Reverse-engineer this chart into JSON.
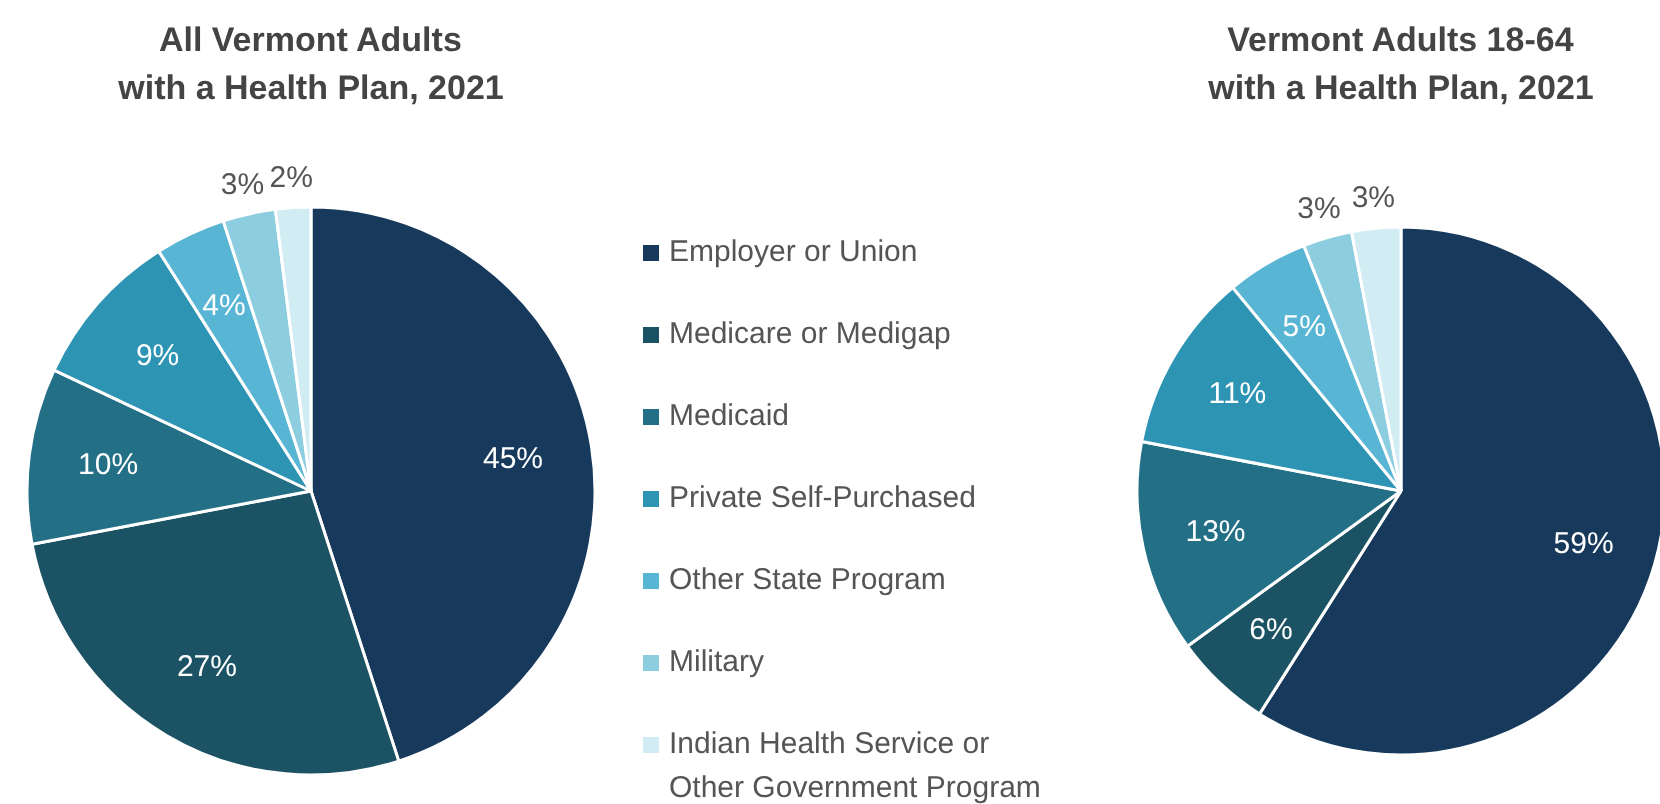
{
  "chart_data": [
    {
      "type": "pie",
      "title": "All Vermont Adults\nwith a Health Plan, 2021",
      "categories": [
        "Employer or Union",
        "Medicare or Medigap",
        "Medicaid",
        "Private Self-Purchased",
        "Other State Program",
        "Military",
        "Indian Health Service or Other Government Program"
      ],
      "values": [
        45,
        27,
        10,
        9,
        4,
        3,
        2
      ],
      "value_labels": [
        "45%",
        "27%",
        "10%",
        "9%",
        "4%",
        "3%",
        "2%"
      ],
      "colors": [
        "#17395c",
        "#1c5364",
        "#236f85",
        "#2e94b4",
        "#58b5d3",
        "#8ccde0",
        "#d2ecf3"
      ],
      "legend": "right"
    },
    {
      "type": "pie",
      "title": "Vermont Adults 18-64\nwith a Health Plan, 2021",
      "categories": [
        null,
        null,
        null,
        null,
        null,
        null,
        null
      ],
      "values": [
        59,
        6,
        13,
        11,
        5,
        3,
        3
      ],
      "value_labels": [
        "59%",
        "6%",
        "13%",
        "11%",
        "5%",
        "3%",
        "3%"
      ],
      "colors": [
        "#17395c",
        "#1c5364",
        "#236f85",
        "#2e94b4",
        "#58b5d3",
        "#8ccde0",
        "#d2ecf3"
      ]
    }
  ]
}
